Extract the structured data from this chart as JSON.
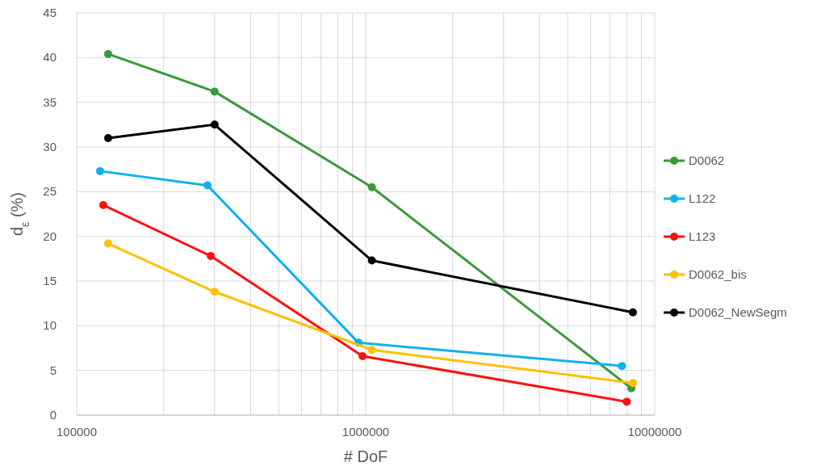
{
  "chart_data": {
    "type": "line",
    "xlabel": "# DoF",
    "ylabel": "d$_{ε}$ (%)",
    "log": "x",
    "grid": true,
    "legend": "right",
    "marker": "circle",
    "line_style": "solid",
    "xlim": [
      100000,
      10000000
    ],
    "ylim": [
      0,
      45
    ],
    "xticks": [
      100000,
      {
        "value": 200000,
        "label": null
      },
      {
        "value": 300000,
        "label": null
      },
      {
        "value": 400000,
        "label": null
      },
      {
        "value": 500000,
        "label": null
      },
      {
        "value": 600000,
        "label": null
      },
      {
        "value": 700000,
        "label": null
      },
      {
        "value": 800000,
        "label": null
      },
      {
        "value": 900000,
        "label": null
      },
      1000000,
      {
        "value": 2000000,
        "label": null
      },
      {
        "value": 3000000,
        "label": null
      },
      {
        "value": 4000000,
        "label": null
      },
      {
        "value": 5000000,
        "label": null
      },
      {
        "value": 6000000,
        "label": null
      },
      {
        "value": 7000000,
        "label": null
      },
      {
        "value": 8000000,
        "label": null
      },
      {
        "value": 9000000,
        "label": null
      },
      10000000
    ],
    "yticks": [
      0,
      5,
      10,
      15,
      20,
      25,
      30,
      35,
      40,
      45
    ],
    "series": [
      {
        "name": "D0062",
        "color": "#3a9a3a",
        "x": [
          128500,
          300000,
          1050000,
          8300000
        ],
        "values": [
          40.4,
          36.2,
          25.5,
          3.0
        ]
      },
      {
        "name": "L122",
        "color": "#11b0ef",
        "x": [
          120500,
          283500,
          944000,
          7700000
        ],
        "values": [
          27.3,
          25.7,
          8.1,
          5.5
        ]
      },
      {
        "name": "L123",
        "color": "#ff1010",
        "x": [
          123600,
          291000,
          975000,
          8000000
        ],
        "values": [
          23.5,
          17.8,
          6.6,
          1.5
        ]
      },
      {
        "name": "D0062_bis",
        "color": "#ffc000",
        "x": [
          128500,
          300000,
          1050000,
          8400000
        ],
        "values": [
          19.2,
          13.8,
          7.3,
          3.6
        ]
      },
      {
        "name": "D0062_NewSegm",
        "color": "#000000",
        "x": [
          128500,
          300000,
          1050000,
          8400000
        ],
        "values": [
          31.0,
          32.5,
          17.3,
          11.5
        ]
      }
    ]
  }
}
